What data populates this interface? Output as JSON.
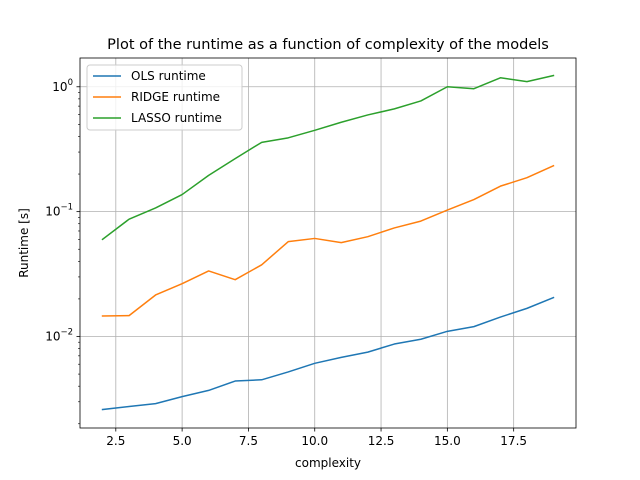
{
  "chart_data": {
    "type": "line",
    "title": "Plot of the runtime as a function of complexity of the models",
    "xlabel": "complexity",
    "ylabel": "Runtime [s]",
    "xlim": [
      1.15,
      19.85
    ],
    "ylim": [
      0.00185,
      1.7
    ],
    "yscale": "log",
    "grid": true,
    "legend_position": "top-left",
    "x_ticks": [
      {
        "value": 2.5,
        "label": "2.5"
      },
      {
        "value": 5.0,
        "label": "5.0"
      },
      {
        "value": 7.5,
        "label": "7.5"
      },
      {
        "value": 10.0,
        "label": "10.0"
      },
      {
        "value": 12.5,
        "label": "12.5"
      },
      {
        "value": 15.0,
        "label": "15.0"
      },
      {
        "value": 17.5,
        "label": "17.5"
      }
    ],
    "y_ticks": [
      {
        "value": 0.01,
        "base": "10",
        "exp": "−2"
      },
      {
        "value": 0.1,
        "base": "10",
        "exp": "−1"
      },
      {
        "value": 1,
        "base": "10",
        "exp": "0"
      }
    ],
    "x": [
      2,
      3,
      4,
      5,
      6,
      7,
      8,
      9,
      10,
      11,
      12,
      13,
      14,
      15,
      16,
      17,
      18,
      19
    ],
    "series": [
      {
        "name": "OLS runtime",
        "color": "#1f77b4",
        "values": [
          0.0026,
          0.00275,
          0.0029,
          0.0033,
          0.0037,
          0.0044,
          0.0045,
          0.0052,
          0.0061,
          0.0068,
          0.0075,
          0.0087,
          0.0095,
          0.011,
          0.012,
          0.0143,
          0.0168,
          0.0205
        ]
      },
      {
        "name": "RIDGE runtime",
        "color": "#ff7f0e",
        "values": [
          0.0146,
          0.0147,
          0.0215,
          0.0265,
          0.0335,
          0.0285,
          0.0375,
          0.0575,
          0.061,
          0.0565,
          0.063,
          0.074,
          0.084,
          0.103,
          0.125,
          0.16,
          0.187,
          0.233
        ]
      },
      {
        "name": "LASSO runtime",
        "color": "#2ca02c",
        "values": [
          0.06,
          0.087,
          0.107,
          0.137,
          0.195,
          0.266,
          0.359,
          0.39,
          0.448,
          0.52,
          0.595,
          0.665,
          0.77,
          1.0,
          0.965,
          1.18,
          1.1,
          1.23
        ]
      }
    ]
  }
}
